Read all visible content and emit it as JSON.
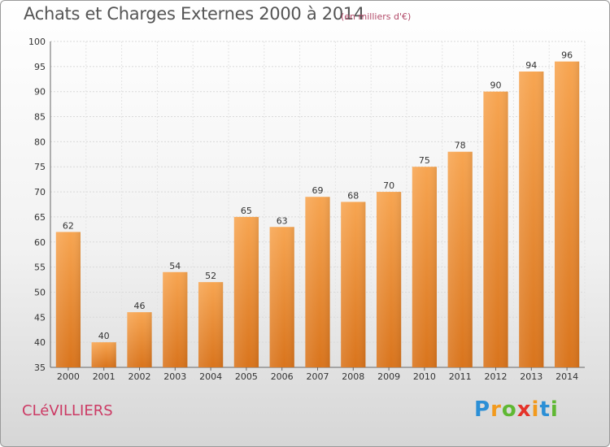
{
  "title": "Achats et Charges Externes 2000 à 2014",
  "subtitle": "(en milliers d'€)",
  "city": "CLéVILLIERS",
  "logo": {
    "letters": [
      "P",
      "r",
      "o",
      "x",
      "i",
      "t",
      "i"
    ],
    "colors": [
      "#2b8fd6",
      "#f29a1d",
      "#5fb833",
      "#e5332a",
      "#f29a1d",
      "#2b8fd6",
      "#5fb833"
    ]
  },
  "colors": {
    "bar_top": "#f7a551",
    "bar_bottom": "#d9741c",
    "city": "#cc3a64"
  },
  "chart_data": {
    "type": "bar",
    "title": "Achats et Charges Externes 2000 à 2014",
    "subtitle": "(en milliers d'€)",
    "categories": [
      "2000",
      "2001",
      "2002",
      "2003",
      "2004",
      "2005",
      "2006",
      "2007",
      "2008",
      "2009",
      "2010",
      "2011",
      "2012",
      "2013",
      "2014"
    ],
    "values": [
      62,
      40,
      46,
      54,
      52,
      65,
      63,
      69,
      68,
      70,
      75,
      78,
      90,
      94,
      96
    ],
    "ylim": [
      35,
      100
    ],
    "yticks": [
      35,
      40,
      45,
      50,
      55,
      60,
      65,
      70,
      75,
      80,
      85,
      90,
      95,
      100
    ],
    "grid": true,
    "data_labels": true
  }
}
